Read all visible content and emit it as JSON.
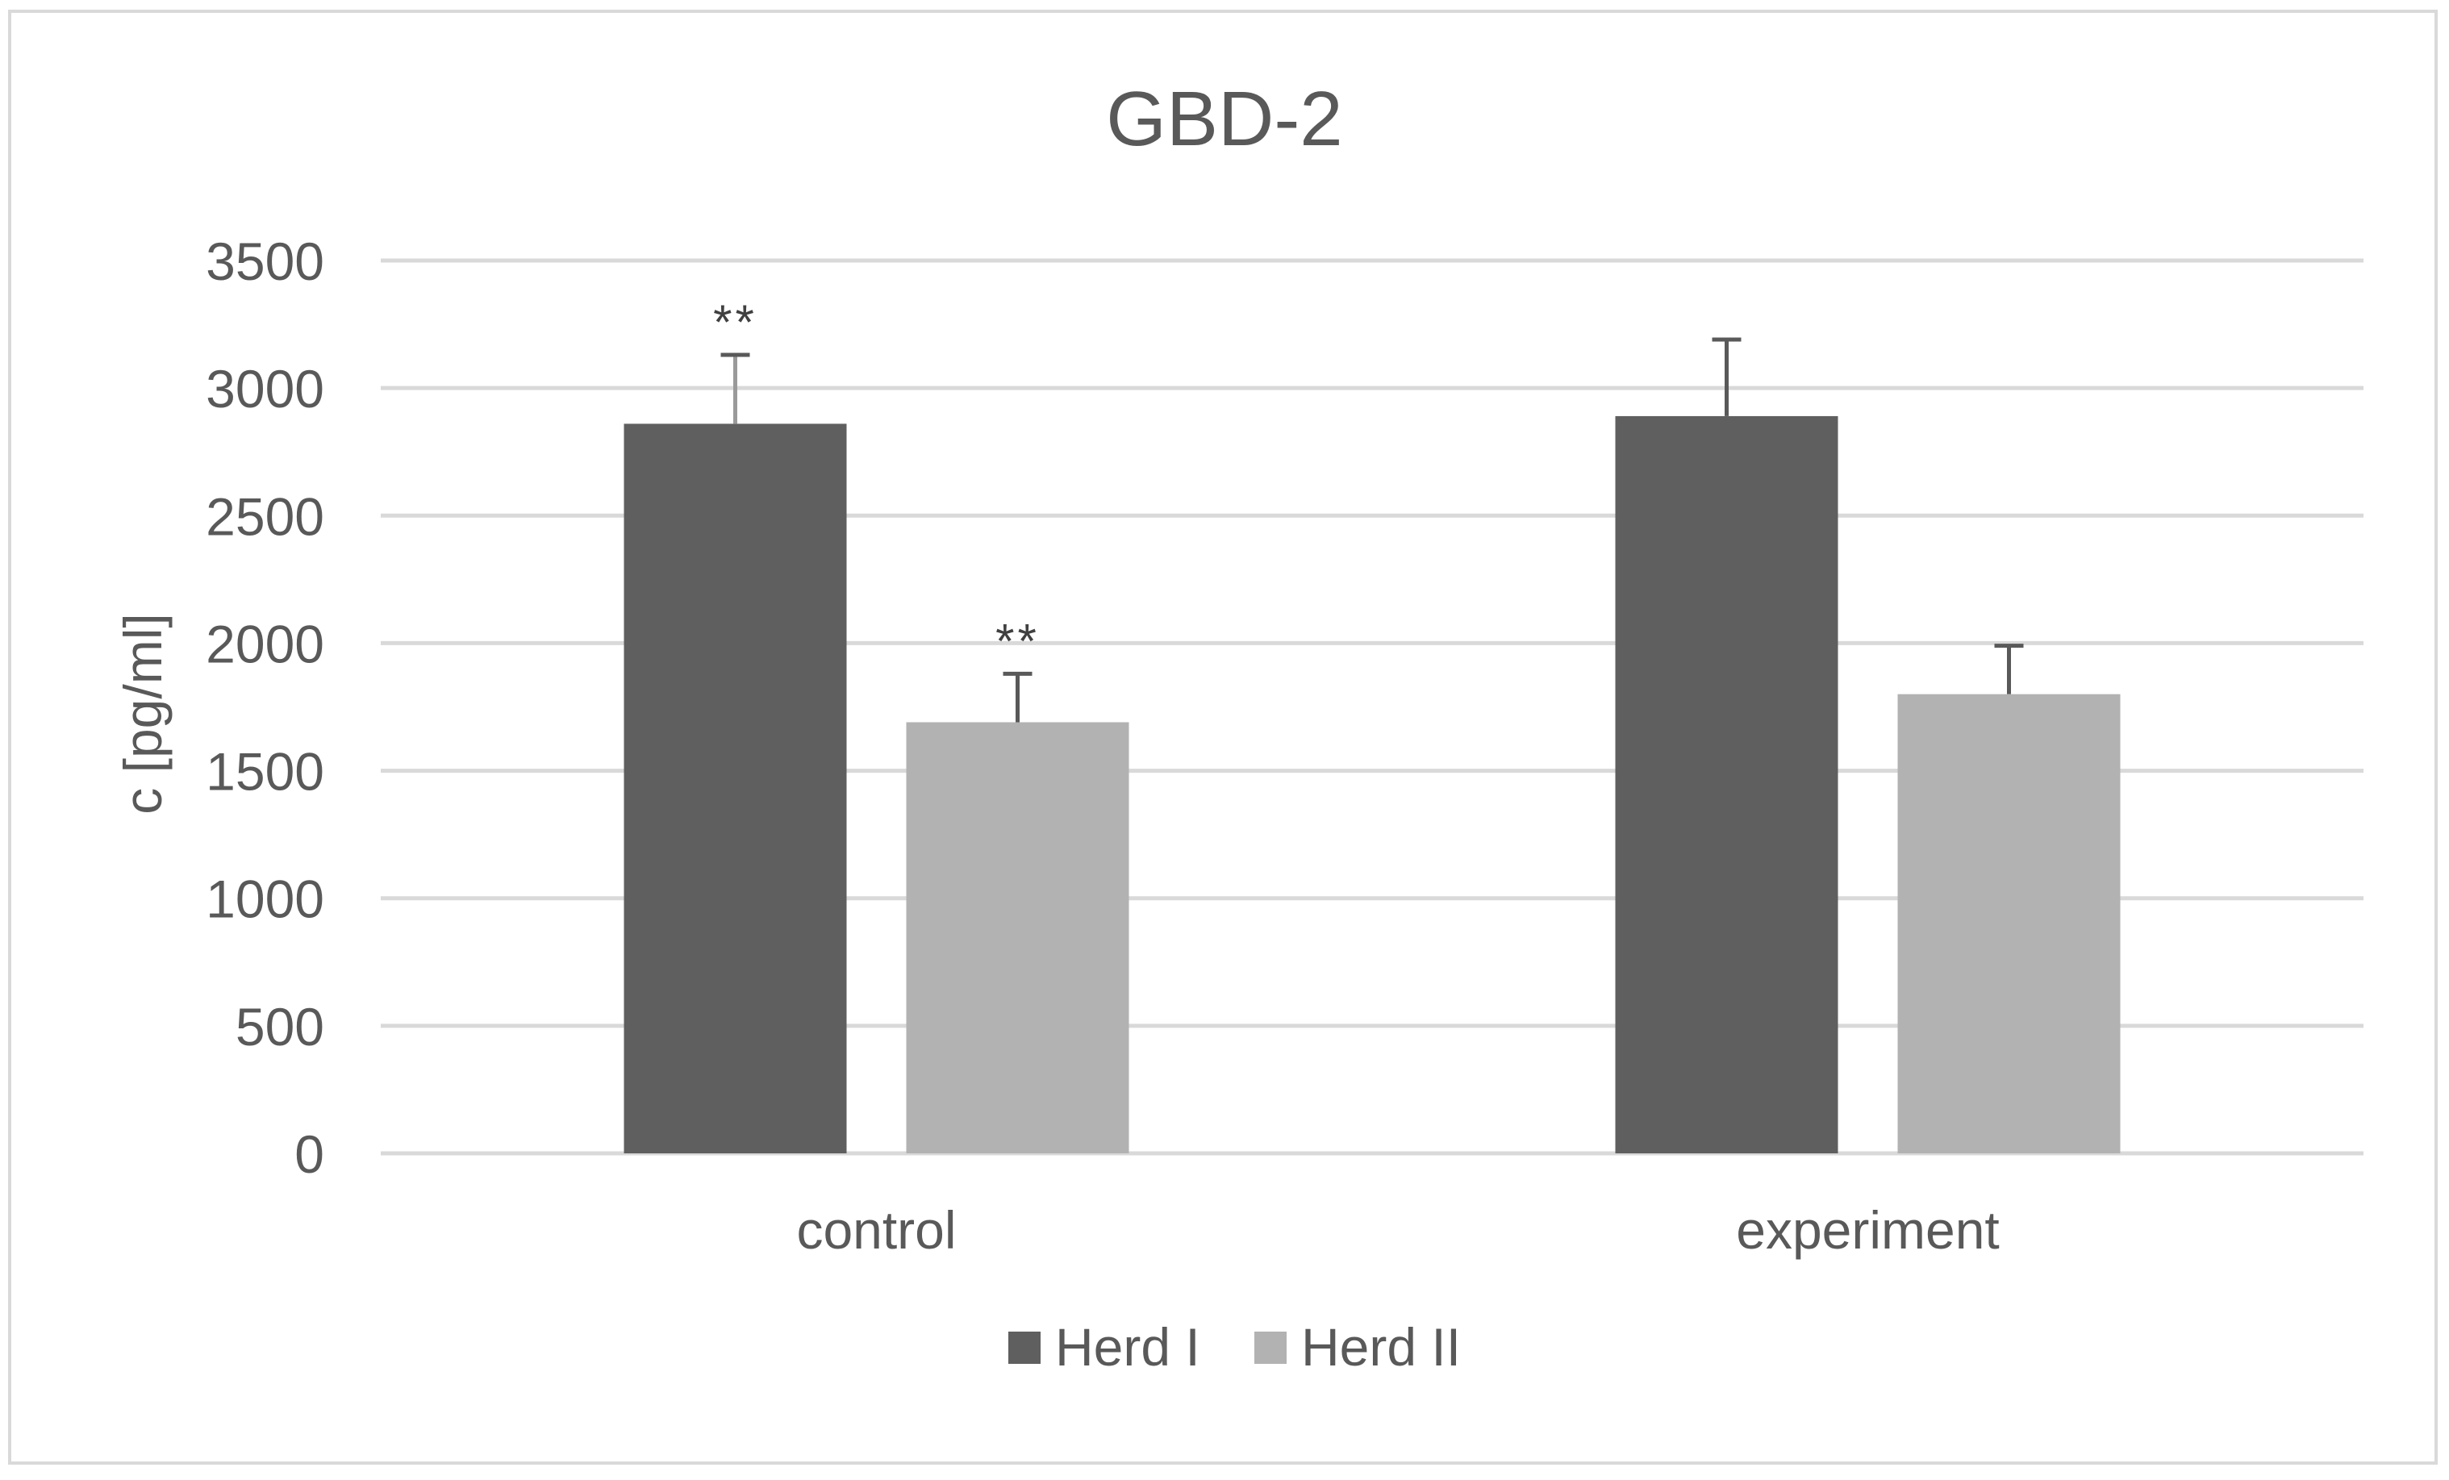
{
  "chart_data": {
    "type": "bar",
    "title": "GBD-2",
    "xlabel": "",
    "ylabel": "c [pg/ml]",
    "categories": [
      "control",
      "experiment"
    ],
    "series": [
      {
        "name": "Herd I",
        "color": "#5f5f5f",
        "values": [
          2860,
          2890
        ],
        "errors": [
          270,
          300
        ],
        "annotations": [
          "**",
          ""
        ]
      },
      {
        "name": "Herd II",
        "color": "#b2b2b2",
        "values": [
          1690,
          1800
        ],
        "errors": [
          190,
          190
        ],
        "annotations": [
          "**",
          ""
        ]
      }
    ],
    "ylim": [
      0,
      3500
    ],
    "yticks": [
      0,
      500,
      1000,
      1500,
      2000,
      2500,
      3000,
      3500
    ],
    "grid": true,
    "legend": "bottom"
  }
}
